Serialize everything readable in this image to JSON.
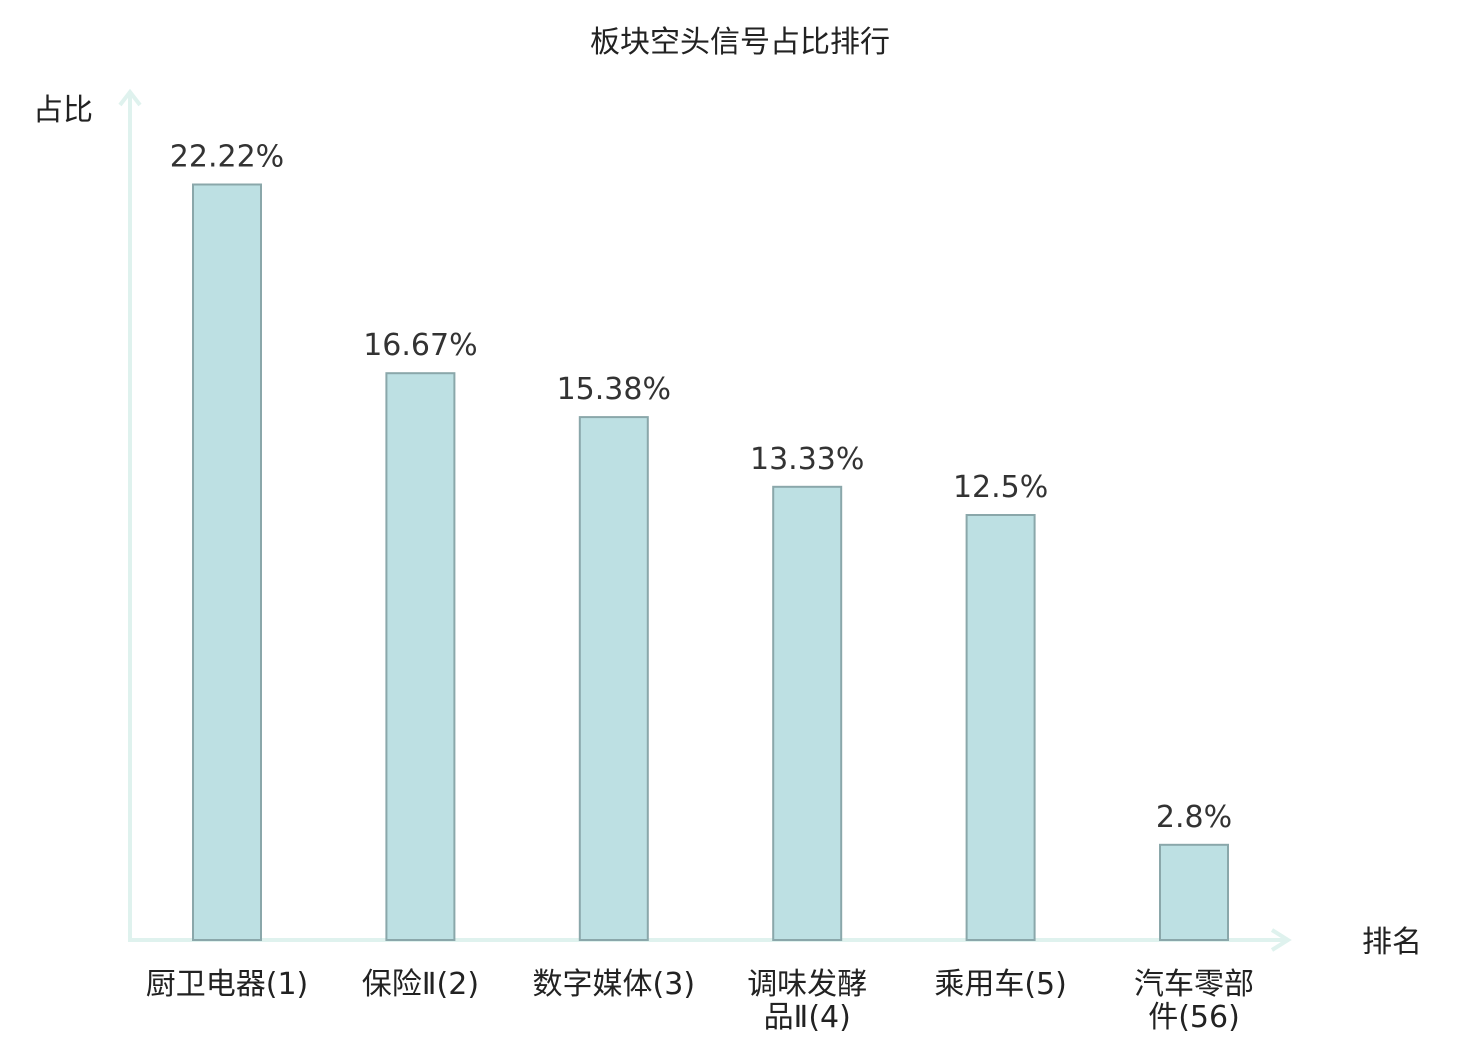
{
  "chart_data": {
    "type": "bar",
    "title": "板块空头信号占比排行",
    "xlabel": "排名",
    "ylabel": "占比",
    "categories": [
      [
        "厨卫电器(1)"
      ],
      [
        "保险Ⅱ(2)"
      ],
      [
        "数字媒体(3)"
      ],
      [
        "调味发酵",
        "品Ⅱ(4)"
      ],
      [
        "乘用车(5)"
      ],
      [
        "汽车零部",
        "件(56)"
      ]
    ],
    "values": [
      22.22,
      16.67,
      15.38,
      13.33,
      12.5,
      2.8
    ],
    "value_labels": [
      "22.22%",
      "16.67%",
      "15.38%",
      "13.33%",
      "12.5%",
      "2.8%"
    ],
    "ylim": [
      0,
      25
    ],
    "grid": false,
    "highlight_index": 5,
    "colors": {
      "bar_fill": "#bde0e3",
      "bar_stroke": "#8aa7aa",
      "axis": "#dff2ee",
      "text": "#222222",
      "value_text": "#333333",
      "highlight_text": "#e0201b"
    }
  }
}
